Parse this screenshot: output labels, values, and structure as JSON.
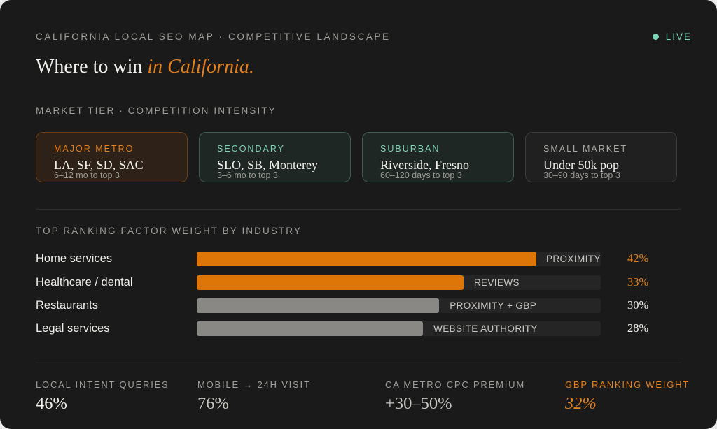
{
  "header": {
    "eyebrow": "CALIFORNIA LOCAL SEO MAP · COMPETITIVE LANDSCAPE",
    "live_label": "LIVE",
    "headline_main": "Where to win ",
    "headline_accent": "in California."
  },
  "colors": {
    "accent": "#e0801e",
    "live": "#79d6b8",
    "bar_highlight": "#dd7607",
    "bar_neutral": "#8a8884"
  },
  "tiers": {
    "section_label": "MARKET TIER · COMPETITION INTENSITY",
    "items": [
      {
        "label": "MAJOR METRO",
        "title": "LA, SF, SD, SAC",
        "subtitle": "6–12 mo to top 3"
      },
      {
        "label": "SECONDARY",
        "title": "SLO, SB, Monterey",
        "subtitle": "3–6 mo to top 3"
      },
      {
        "label": "SUBURBAN",
        "title": "Riverside, Fresno",
        "subtitle": "60–120 days to top 3"
      },
      {
        "label": "SMALL MARKET",
        "title": "Under 50k pop",
        "subtitle": "30–90 days to top 3"
      }
    ]
  },
  "factors": {
    "section_label": "TOP RANKING FACTOR WEIGHT BY INDUSTRY",
    "rows": [
      {
        "industry": "Home services",
        "factor": "PROXIMITY",
        "percent_label": "42%",
        "bar_fraction": 0.84,
        "highlight": true
      },
      {
        "industry": "Healthcare / dental",
        "factor": "REVIEWS",
        "percent_label": "33%",
        "bar_fraction": 0.66,
        "highlight": true
      },
      {
        "industry": "Restaurants",
        "factor": "PROXIMITY + GBP",
        "percent_label": "30%",
        "bar_fraction": 0.6,
        "highlight": false
      },
      {
        "industry": "Legal services",
        "factor": "WEBSITE AUTHORITY",
        "percent_label": "28%",
        "bar_fraction": 0.56,
        "highlight": false
      }
    ]
  },
  "stats": [
    {
      "label": "LOCAL INTENT QUERIES",
      "value": "46%"
    },
    {
      "label": "MOBILE → 24H VISIT",
      "value": "76%"
    },
    {
      "label": "CA METRO CPC PREMIUM",
      "value": "+30–50%"
    },
    {
      "label": "GBP RANKING WEIGHT",
      "value": "32%"
    }
  ]
}
